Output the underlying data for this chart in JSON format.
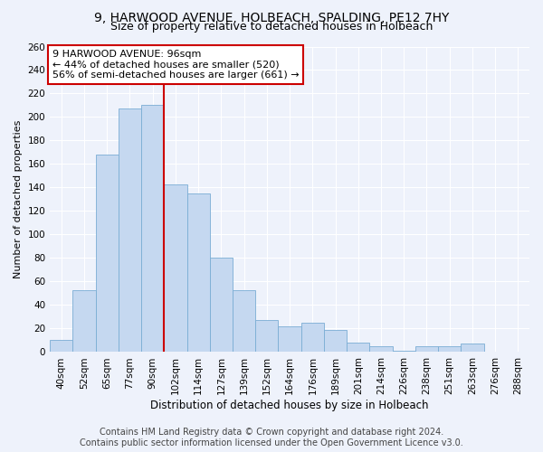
{
  "title_line1": "9, HARWOOD AVENUE, HOLBEACH, SPALDING, PE12 7HY",
  "title_line2": "Size of property relative to detached houses in Holbeach",
  "xlabel": "Distribution of detached houses by size in Holbeach",
  "ylabel": "Number of detached properties",
  "categories": [
    "40sqm",
    "52sqm",
    "65sqm",
    "77sqm",
    "90sqm",
    "102sqm",
    "114sqm",
    "127sqm",
    "139sqm",
    "152sqm",
    "164sqm",
    "176sqm",
    "189sqm",
    "201sqm",
    "214sqm",
    "226sqm",
    "238sqm",
    "251sqm",
    "263sqm",
    "276sqm",
    "288sqm"
  ],
  "values": [
    10,
    53,
    168,
    207,
    210,
    143,
    135,
    80,
    53,
    27,
    22,
    25,
    19,
    8,
    5,
    1,
    5,
    5,
    7,
    0,
    0
  ],
  "bar_color": "#c5d8f0",
  "bar_edge_color": "#7aadd4",
  "red_line_x": 4.5,
  "annotation_text": "9 HARWOOD AVENUE: 96sqm\n← 44% of detached houses are smaller (520)\n56% of semi-detached houses are larger (661) →",
  "annotation_box_color": "#ffffff",
  "annotation_box_edge_color": "#cc0000",
  "footer_line1": "Contains HM Land Registry data © Crown copyright and database right 2024.",
  "footer_line2": "Contains public sector information licensed under the Open Government Licence v3.0.",
  "background_color": "#eef2fb",
  "ylim": [
    0,
    260
  ],
  "yticks": [
    0,
    20,
    40,
    60,
    80,
    100,
    120,
    140,
    160,
    180,
    200,
    220,
    240,
    260
  ],
  "grid_color": "#ffffff",
  "title1_fontsize": 10,
  "title2_fontsize": 9,
  "axis_label_fontsize": 8.5,
  "tick_fontsize": 7.5,
  "annotation_fontsize": 8,
  "footer_fontsize": 7,
  "red_line_color": "#cc0000",
  "ylabel_fontsize": 8
}
